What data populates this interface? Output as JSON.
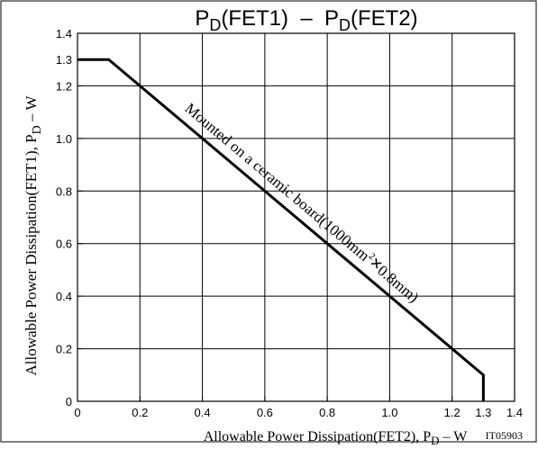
{
  "chart_data": {
    "type": "line",
    "title": {
      "p1": "P",
      "sub1": "D",
      "mid": "(FET1)  –  P",
      "sub2": "D",
      "end": "(FET2)"
    },
    "xlabel": {
      "main": "Allowable Power Dissipation(FET2), P",
      "sub": "D",
      "unit": " – W"
    },
    "ylabel": {
      "main": "Allowable Power Dissipation(FET1), P",
      "sub": "D",
      "unit": " – W"
    },
    "code": "IT05903",
    "xlim": [
      0,
      1.4
    ],
    "ylim": [
      0,
      1.4
    ],
    "grid": true,
    "x_ticks": [
      {
        "v": 0,
        "label": "0"
      },
      {
        "v": 0.2,
        "label": "0.2"
      },
      {
        "v": 0.4,
        "label": "0.4"
      },
      {
        "v": 0.6,
        "label": "0.6"
      },
      {
        "v": 0.8,
        "label": "0.8"
      },
      {
        "v": 1.0,
        "label": "1.0"
      },
      {
        "v": 1.2,
        "label": "1.2"
      },
      {
        "v": 1.3,
        "label": "1.3"
      },
      {
        "v": 1.4,
        "label": "1.4"
      }
    ],
    "y_ticks": [
      {
        "v": 0,
        "label": "0"
      },
      {
        "v": 0.2,
        "label": "0.2"
      },
      {
        "v": 0.4,
        "label": "0.4"
      },
      {
        "v": 0.6,
        "label": "0.6"
      },
      {
        "v": 0.8,
        "label": "0.8"
      },
      {
        "v": 1.0,
        "label": "1.0"
      },
      {
        "v": 1.2,
        "label": "1.2"
      },
      {
        "v": 1.3,
        "label": "1.3"
      },
      {
        "v": 1.4,
        "label": "1.4"
      }
    ],
    "x_gridlines": [
      0.2,
      0.4,
      0.6,
      0.8,
      1.0,
      1.2
    ],
    "y_gridlines": [
      0.2,
      0.4,
      0.6,
      0.8,
      1.0,
      1.2
    ],
    "series": [
      {
        "x": [
          0,
          0.1,
          1.3,
          1.3
        ],
        "y": [
          1.3,
          1.3,
          0.1,
          0
        ]
      }
    ],
    "annotation": {
      "pre": "Mounted on a ceramic board(1000mm",
      "sup": "2",
      "times": "×",
      "post": "0.8mm)"
    }
  }
}
